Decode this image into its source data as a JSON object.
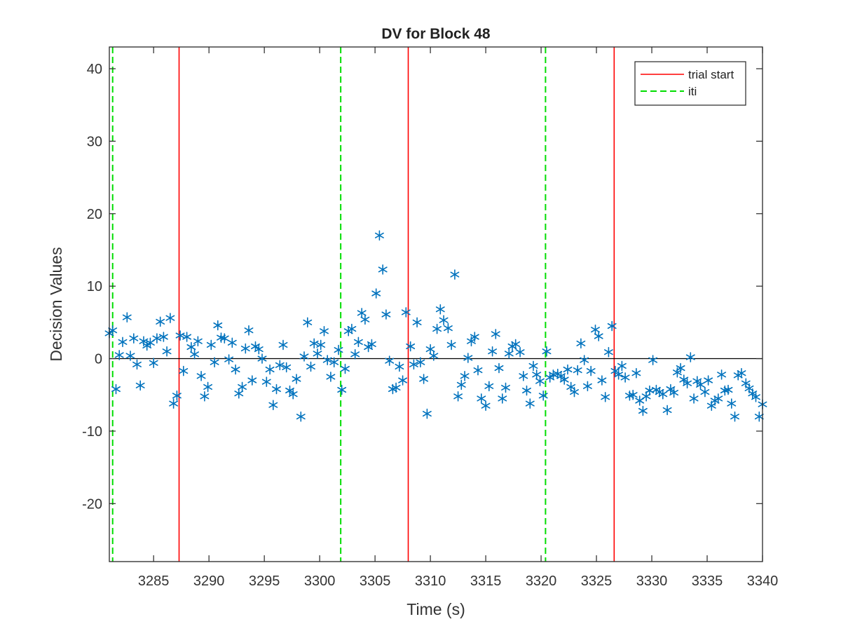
{
  "chart_data": {
    "type": "scatter",
    "title": "DV for Block 48",
    "xlabel": "Time (s)",
    "ylabel": "Decision Values",
    "xlim": [
      3281,
      3340
    ],
    "ylim": [
      -28,
      43
    ],
    "xticks": [
      3285,
      3290,
      3295,
      3300,
      3305,
      3310,
      3315,
      3320,
      3325,
      3330,
      3335,
      3340
    ],
    "yticks": [
      -20,
      -10,
      0,
      10,
      20,
      30,
      40
    ],
    "grid": false,
    "legend_position": "top-right",
    "zero_line": 0,
    "colors": {
      "points": "#0072BD",
      "trial_start": "#FF0000",
      "iti": "#00DD00",
      "zero_line": "#000000"
    },
    "vertical_lines": [
      {
        "series": "trial start",
        "x": [
          3287.3,
          3308.0,
          3326.6
        ]
      },
      {
        "series": "iti",
        "x": [
          3281.3,
          3301.9,
          3320.4
        ]
      }
    ],
    "legend": [
      {
        "label": "trial start",
        "style": "solid",
        "color": "#FF0000"
      },
      {
        "label": "iti",
        "style": "dashed",
        "color": "#00DD00"
      }
    ],
    "series": [
      {
        "name": "",
        "marker": "asterisk",
        "x": [
          3281.0,
          3281.3,
          3281.6,
          3281.9,
          3282.2,
          3282.6,
          3282.9,
          3283.2,
          3283.5,
          3283.8,
          3284.1,
          3284.4,
          3284.7,
          3285.0,
          3285.3,
          3285.6,
          3285.9,
          3286.2,
          3286.5,
          3286.8,
          3287.1,
          3287.4,
          3287.7,
          3288.0,
          3288.4,
          3288.7,
          3289.0,
          3289.3,
          3289.6,
          3289.9,
          3290.2,
          3290.5,
          3290.8,
          3291.1,
          3291.4,
          3291.8,
          3292.1,
          3292.4,
          3292.7,
          3293.0,
          3293.3,
          3293.6,
          3293.9,
          3294.2,
          3294.5,
          3294.8,
          3295.2,
          3295.5,
          3295.8,
          3296.1,
          3296.4,
          3296.7,
          3297.0,
          3297.3,
          3297.6,
          3297.9,
          3298.3,
          3298.6,
          3298.9,
          3299.2,
          3299.5,
          3299.8,
          3300.1,
          3300.4,
          3300.7,
          3301.0,
          3301.3,
          3301.7,
          3302.0,
          3302.3,
          3302.6,
          3302.9,
          3303.2,
          3303.5,
          3303.8,
          3304.1,
          3304.4,
          3304.7,
          3305.1,
          3305.4,
          3305.7,
          3306.0,
          3306.3,
          3306.6,
          3306.9,
          3307.2,
          3307.5,
          3307.8,
          3308.2,
          3308.5,
          3308.8,
          3309.1,
          3309.4,
          3309.7,
          3310.0,
          3310.3,
          3310.6,
          3310.9,
          3311.2,
          3311.6,
          3311.9,
          3312.2,
          3312.5,
          3312.8,
          3313.1,
          3313.4,
          3313.7,
          3314.0,
          3314.3,
          3314.6,
          3315.0,
          3315.3,
          3315.6,
          3315.9,
          3316.2,
          3316.5,
          3316.8,
          3317.1,
          3317.4,
          3317.7,
          3318.1,
          3318.4,
          3318.7,
          3319.0,
          3319.3,
          3319.6,
          3319.9,
          3320.2,
          3320.5,
          3320.8,
          3321.1,
          3321.5,
          3321.8,
          3322.1,
          3322.4,
          3322.7,
          3323.0,
          3323.3,
          3323.6,
          3323.9,
          3324.2,
          3324.5,
          3324.9,
          3325.2,
          3325.5,
          3325.8,
          3326.1,
          3326.4,
          3326.7,
          3327.0,
          3327.3,
          3327.6,
          3328.0,
          3328.3,
          3328.6,
          3328.9,
          3329.2,
          3329.5,
          3329.8,
          3330.1,
          3330.4,
          3330.7,
          3331.0,
          3331.4,
          3331.7,
          3332.0,
          3332.3,
          3332.6,
          3332.9,
          3333.2,
          3333.5,
          3333.8,
          3334.1,
          3334.4,
          3334.8,
          3335.1,
          3335.4,
          3335.7,
          3336.0,
          3336.3,
          3336.6,
          3336.9,
          3337.2,
          3337.5,
          3337.8,
          3338.1,
          3338.5,
          3338.8,
          3339.1,
          3339.4,
          3339.7,
          3340.0
        ],
        "y": [
          3.5,
          3.9,
          -4.2,
          0.5,
          2.3,
          5.7,
          0.4,
          2.8,
          -0.8,
          -3.7,
          2.4,
          1.8,
          2.2,
          -0.6,
          2.8,
          5.1,
          3.0,
          1.0,
          5.6,
          -6.2,
          -5.1,
          3.2,
          -1.7,
          3.0,
          1.6,
          0.6,
          2.4,
          -2.4,
          -5.2,
          -3.9,
          1.9,
          -0.5,
          4.6,
          2.9,
          2.8,
          -0.1,
          2.2,
          -1.5,
          -4.8,
          -3.9,
          1.4,
          3.9,
          -3.0,
          1.7,
          1.3,
          0.0,
          -3.2,
          -1.5,
          -6.4,
          -4.2,
          -0.9,
          1.9,
          -1.2,
          -4.4,
          -4.9,
          -2.8,
          -8.0,
          0.3,
          5.0,
          -1.1,
          2.1,
          0.7,
          1.9,
          3.8,
          -0.2,
          -2.5,
          -0.5,
          1.2,
          -4.3,
          -1.4,
          3.8,
          4.1,
          0.6,
          2.3,
          6.3,
          5.4,
          1.6,
          2.0,
          9.0,
          17.0,
          12.3,
          6.1,
          -0.3,
          -4.2,
          -4.0,
          -1.1,
          -3.0,
          6.4,
          1.7,
          -0.8,
          5.0,
          -0.5,
          -2.8,
          -7.6,
          1.3,
          0.4,
          4.1,
          6.8,
          5.3,
          4.2,
          1.9,
          11.6,
          -5.2,
          -3.6,
          -2.4,
          0.1,
          2.4,
          3.0,
          -1.6,
          -5.5,
          -6.5,
          -3.8,
          1.0,
          3.4,
          -1.3,
          -5.5,
          -4.0,
          0.7,
          1.7,
          2.0,
          0.9,
          -2.4,
          -4.4,
          -6.2,
          -1.0,
          -2.2,
          -3.1,
          -5.1,
          1.0,
          -2.6,
          -2.2,
          -2.1,
          -2.4,
          -2.9,
          -1.5,
          -3.9,
          -4.6,
          -1.6,
          2.1,
          -0.2,
          -3.8,
          -1.7,
          4.0,
          3.1,
          -3.0,
          -5.3,
          0.9,
          4.5,
          -1.7,
          -2.2,
          -1.0,
          -2.6,
          -5.1,
          -5.0,
          -2.0,
          -5.8,
          -7.2,
          -5.2,
          -4.4,
          -0.2,
          -4.3,
          -4.6,
          -4.9,
          -7.1,
          -4.2,
          -4.7,
          -1.9,
          -1.3,
          -2.9,
          -3.4,
          0.2,
          -5.5,
          -3.1,
          -3.6,
          -4.6,
          -3.0,
          -6.5,
          -5.8,
          -5.5,
          -2.2,
          -4.4,
          -4.3,
          -6.2,
          -8.0,
          -2.3,
          -2.0,
          -3.4,
          -4.1,
          -4.8,
          -5.3,
          -8.0,
          -6.3
        ]
      }
    ]
  }
}
